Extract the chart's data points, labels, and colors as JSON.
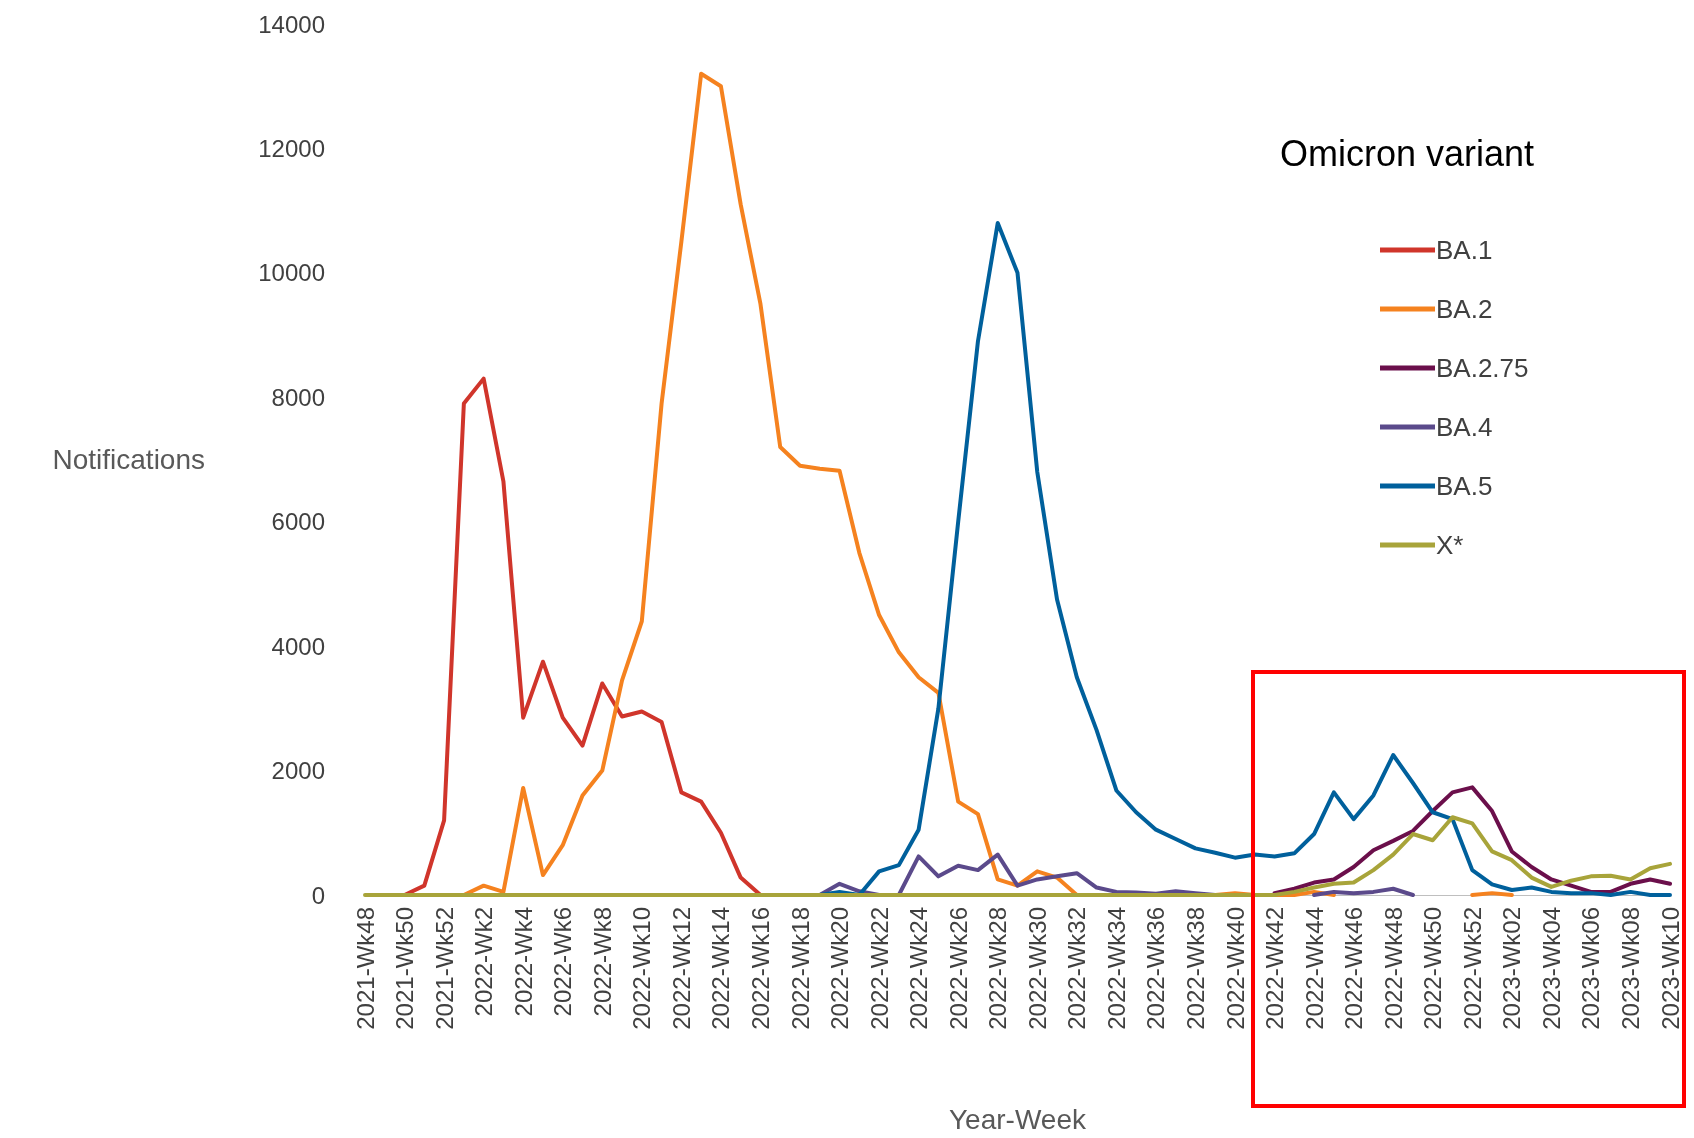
{
  "chart_data": {
    "type": "line",
    "xlabel": "Year-Week",
    "ylabel": "Notifications",
    "legend_title": "Omicron variant",
    "categories": [
      "2021-Wk48",
      null,
      "2021-Wk50",
      null,
      "2021-Wk52",
      null,
      "2022-Wk2",
      null,
      "2022-Wk4",
      null,
      "2022-Wk6",
      null,
      "2022-Wk8",
      null,
      "2022-Wk10",
      null,
      "2022-Wk12",
      null,
      "2022-Wk14",
      null,
      "2022-Wk16",
      null,
      "2022-Wk18",
      null,
      "2022-Wk20",
      null,
      "2022-Wk22",
      null,
      "2022-Wk24",
      null,
      "2022-Wk26",
      null,
      "2022-Wk28",
      null,
      "2022-Wk30",
      null,
      "2022-Wk32",
      null,
      "2022-Wk34",
      null,
      "2022-Wk36",
      null,
      "2022-Wk38",
      null,
      "2022-Wk40",
      null,
      "2022-Wk42",
      null,
      "2022-Wk44",
      null,
      "2022-Wk46",
      null,
      "2022-Wk48",
      null,
      "2022-Wk50",
      null,
      "2022-Wk52",
      null,
      "2023-Wk02",
      null,
      "2023-Wk04",
      null,
      "2023-Wk06",
      null,
      "2023-Wk08",
      null,
      "2023-Wk10"
    ],
    "series": [
      {
        "name": "BA.1",
        "color": "#d0352b",
        "values": [
          null,
          null,
          0,
          150,
          1200,
          7900,
          8300,
          6650,
          2850,
          3750,
          2850,
          2400,
          3400,
          2870,
          2950,
          2780,
          1650,
          1500,
          1000,
          280,
          0,
          null,
          null,
          null,
          null,
          null,
          null,
          null,
          null,
          null,
          null,
          null,
          null,
          null,
          null,
          null,
          null,
          null,
          null,
          null,
          null,
          null,
          null,
          null,
          null,
          null,
          null,
          null,
          null,
          null,
          null,
          null,
          null,
          null,
          null,
          null,
          null,
          null,
          null,
          null,
          null,
          null,
          null,
          null,
          null,
          null,
          null
        ]
      },
      {
        "name": "BA.2",
        "color": "#f5821f",
        "values": [
          null,
          null,
          null,
          null,
          null,
          0,
          150,
          50,
          1720,
          320,
          800,
          1600,
          2000,
          3450,
          4400,
          7900,
          10500,
          13200,
          13000,
          11100,
          9500,
          7200,
          6900,
          6850,
          6820,
          5500,
          4500,
          3900,
          3500,
          3250,
          1500,
          1300,
          250,
          150,
          380,
          280,
          0,
          null,
          null,
          null,
          null,
          null,
          null,
          0,
          30,
          0,
          0,
          0,
          50,
          0,
          null,
          null,
          null,
          null,
          null,
          null,
          0,
          30,
          0,
          null,
          null,
          null,
          null,
          null,
          null,
          null,
          null
        ]
      },
      {
        "name": "BA.2.75",
        "color": "#6b0f4b",
        "values": [
          null,
          null,
          null,
          null,
          null,
          null,
          null,
          null,
          null,
          null,
          null,
          null,
          null,
          null,
          null,
          null,
          null,
          null,
          null,
          null,
          null,
          null,
          null,
          null,
          null,
          null,
          null,
          null,
          null,
          null,
          null,
          null,
          null,
          null,
          null,
          null,
          null,
          null,
          null,
          null,
          null,
          null,
          null,
          null,
          null,
          null,
          30,
          100,
          200,
          250,
          450,
          720,
          870,
          1030,
          1350,
          1650,
          1730,
          1350,
          700,
          450,
          250,
          150,
          50,
          50,
          180,
          250,
          180
        ]
      },
      {
        "name": "BA.4",
        "color": "#5b4a8b",
        "values": [
          null,
          null,
          null,
          null,
          null,
          null,
          null,
          null,
          null,
          null,
          null,
          null,
          null,
          null,
          null,
          null,
          null,
          null,
          null,
          null,
          null,
          null,
          null,
          0,
          180,
          60,
          0,
          0,
          620,
          300,
          470,
          400,
          650,
          150,
          250,
          300,
          350,
          120,
          50,
          40,
          20,
          60,
          30,
          0,
          null,
          null,
          null,
          null,
          0,
          50,
          30,
          50,
          100,
          0,
          null,
          null,
          null,
          null,
          null,
          null,
          null,
          null,
          null,
          null,
          null,
          null,
          null
        ]
      },
      {
        "name": "BA.5",
        "color": "#00609c",
        "values": [
          null,
          null,
          null,
          null,
          null,
          null,
          null,
          null,
          null,
          null,
          null,
          null,
          null,
          null,
          null,
          null,
          null,
          null,
          null,
          null,
          null,
          null,
          null,
          0,
          50,
          0,
          380,
          480,
          1050,
          3000,
          6000,
          8900,
          10800,
          10000,
          6800,
          4750,
          3500,
          2650,
          1680,
          1330,
          1050,
          900,
          750,
          680,
          600,
          650,
          620,
          670,
          980,
          1650,
          1220,
          1600,
          2250,
          1800,
          1330,
          1220,
          400,
          170,
          80,
          120,
          50,
          30,
          30,
          0,
          50,
          0,
          0
        ]
      },
      {
        "name": "X*",
        "color": "#a8a43a",
        "values": [
          0,
          0,
          0,
          0,
          0,
          0,
          0,
          0,
          0,
          0,
          0,
          0,
          0,
          0,
          0,
          0,
          0,
          0,
          0,
          0,
          0,
          0,
          0,
          0,
          0,
          0,
          0,
          0,
          0,
          0,
          0,
          0,
          0,
          0,
          0,
          0,
          0,
          0,
          0,
          0,
          0,
          0,
          0,
          0,
          0,
          0,
          0,
          50,
          120,
          180,
          200,
          400,
          650,
          980,
          880,
          1250,
          1150,
          700,
          560,
          280,
          130,
          230,
          300,
          310,
          250,
          430,
          500
        ]
      }
    ],
    "ylim": [
      0,
      14000
    ],
    "yticks": [
      0,
      2000,
      4000,
      6000,
      8000,
      10000,
      12000,
      14000
    ],
    "grid": false,
    "legend": "top right",
    "marker": "none",
    "line_style": "solid"
  }
}
